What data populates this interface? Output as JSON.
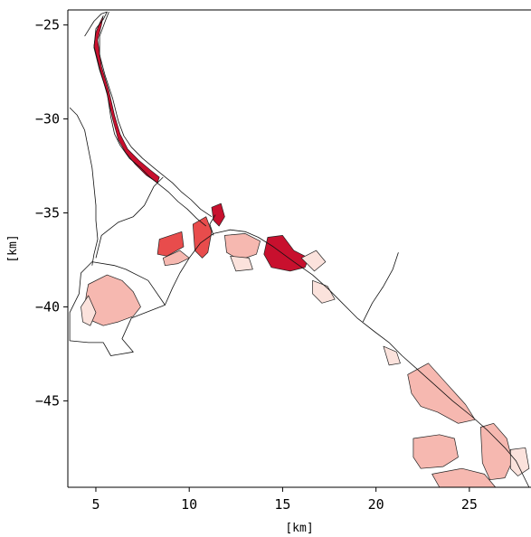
{
  "chart_data": {
    "type": "map-field",
    "title": "",
    "xlabel": "[km]",
    "ylabel": "[km]",
    "xlim": [
      3.5,
      28.3
    ],
    "ylim": [
      -49.6,
      -24.2
    ],
    "xticks": [
      5,
      10,
      15,
      20,
      25
    ],
    "yticks": [
      -25,
      -30,
      -35,
      -40,
      -45
    ],
    "grid": false,
    "colors": {
      "dark": "#c8102e",
      "mid": "#e84c4c",
      "light": "#f6b8b0",
      "faint": "#fbe2dc",
      "outline": "#111111"
    },
    "river_bank_left": [
      [
        4.4,
        -25.6
      ],
      [
        4.9,
        -24.8
      ],
      [
        5.3,
        -24.4
      ],
      [
        5.6,
        -24.3
      ],
      [
        5.4,
        -24.7
      ],
      [
        5.0,
        -25.2
      ],
      [
        4.9,
        -26.2
      ],
      [
        5.2,
        -27.4
      ],
      [
        5.6,
        -28.6
      ],
      [
        5.8,
        -29.9
      ],
      [
        6.0,
        -30.8
      ],
      [
        6.3,
        -31.4
      ],
      [
        6.8,
        -32.1
      ],
      [
        7.4,
        -32.6
      ],
      [
        7.9,
        -33.1
      ],
      [
        8.4,
        -33.5
      ],
      [
        8.9,
        -33.9
      ],
      [
        9.4,
        -34.4
      ],
      [
        9.9,
        -34.8
      ],
      [
        10.4,
        -35.3
      ],
      [
        10.9,
        -35.7
      ]
    ],
    "river_bank_right": [
      [
        5.7,
        -24.3
      ],
      [
        5.5,
        -24.8
      ],
      [
        5.2,
        -25.6
      ],
      [
        5.2,
        -26.6
      ],
      [
        5.5,
        -27.7
      ],
      [
        5.9,
        -28.9
      ],
      [
        6.2,
        -30.1
      ],
      [
        6.5,
        -30.9
      ],
      [
        6.9,
        -31.5
      ],
      [
        7.5,
        -32.1
      ],
      [
        8.1,
        -32.6
      ],
      [
        8.6,
        -33.0
      ],
      [
        9.1,
        -33.4
      ],
      [
        9.6,
        -33.9
      ],
      [
        10.1,
        -34.3
      ],
      [
        10.6,
        -34.8
      ],
      [
        11.2,
        -35.2
      ]
    ],
    "river_fill": [
      [
        5.0,
        -25.4
      ],
      [
        5.2,
        -24.9
      ],
      [
        5.4,
        -24.5
      ],
      [
        5.3,
        -25.0
      ],
      [
        5.1,
        -25.8
      ],
      [
        5.3,
        -27.2
      ],
      [
        5.7,
        -28.5
      ],
      [
        6.0,
        -29.8
      ],
      [
        6.3,
        -30.8
      ],
      [
        6.7,
        -31.6
      ],
      [
        7.3,
        -32.2
      ],
      [
        7.9,
        -32.7
      ],
      [
        8.4,
        -33.1
      ],
      [
        8.3,
        -33.4
      ],
      [
        7.7,
        -33.0
      ],
      [
        7.1,
        -32.4
      ],
      [
        6.6,
        -31.8
      ],
      [
        6.2,
        -31.1
      ],
      [
        5.9,
        -30.0
      ],
      [
        5.6,
        -28.7
      ],
      [
        5.2,
        -27.3
      ],
      [
        4.9,
        -26.1
      ]
    ],
    "channel_north": [
      [
        3.6,
        -29.4
      ],
      [
        4.0,
        -29.8
      ],
      [
        4.4,
        -30.6
      ],
      [
        4.6,
        -31.6
      ],
      [
        4.8,
        -32.6
      ],
      [
        4.9,
        -33.6
      ],
      [
        5.0,
        -34.6
      ],
      [
        5.0,
        -35.4
      ],
      [
        5.1,
        -36.4
      ],
      [
        4.9,
        -37.2
      ],
      [
        4.8,
        -37.8
      ]
    ],
    "channel_mid": [
      [
        5.0,
        -37.4
      ],
      [
        5.3,
        -36.2
      ],
      [
        6.2,
        -35.5
      ],
      [
        7.0,
        -35.2
      ],
      [
        7.6,
        -34.6
      ],
      [
        8.1,
        -33.6
      ],
      [
        8.6,
        -33.1
      ]
    ],
    "harbor_outline": [
      [
        4.2,
        -38.2
      ],
      [
        4.8,
        -37.6
      ],
      [
        6.0,
        -37.8
      ],
      [
        6.6,
        -38.0
      ],
      [
        7.8,
        -38.6
      ],
      [
        8.7,
        -39.9
      ],
      [
        6.9,
        -40.6
      ],
      [
        6.4,
        -41.7
      ],
      [
        7.0,
        -42.4
      ],
      [
        5.8,
        -42.6
      ],
      [
        5.4,
        -41.9
      ],
      [
        4.6,
        -41.9
      ],
      [
        3.6,
        -41.8
      ],
      [
        3.6,
        -40.3
      ],
      [
        4.1,
        -39.3
      ]
    ],
    "coast_main": [
      [
        8.7,
        -39.9
      ],
      [
        9.1,
        -39.0
      ],
      [
        9.5,
        -38.2
      ],
      [
        10.0,
        -37.4
      ],
      [
        10.6,
        -36.6
      ],
      [
        11.3,
        -36.1
      ],
      [
        12.2,
        -35.9
      ],
      [
        13.0,
        -36.0
      ],
      [
        13.7,
        -36.3
      ],
      [
        14.5,
        -36.8
      ],
      [
        15.6,
        -37.6
      ],
      [
        16.6,
        -38.3
      ],
      [
        17.5,
        -39.1
      ],
      [
        18.2,
        -39.8
      ],
      [
        19.0,
        -40.6
      ],
      [
        19.9,
        -41.3
      ],
      [
        20.7,
        -41.9
      ],
      [
        21.4,
        -42.6
      ],
      [
        22.3,
        -43.4
      ],
      [
        23.2,
        -44.2
      ],
      [
        24.1,
        -45.0
      ],
      [
        25.1,
        -45.8
      ],
      [
        26.0,
        -46.6
      ],
      [
        26.9,
        -47.5
      ],
      [
        27.5,
        -48.2
      ],
      [
        27.9,
        -49.0
      ],
      [
        28.2,
        -49.6
      ]
    ],
    "pier_east": [
      [
        19.3,
        -40.8
      ],
      [
        19.8,
        -39.8
      ],
      [
        20.4,
        -38.9
      ],
      [
        20.9,
        -38.0
      ],
      [
        21.2,
        -37.1
      ]
    ],
    "pier_small": [
      [
        11.4,
        -35.1
      ],
      [
        11.1,
        -35.6
      ],
      [
        11.3,
        -36.2
      ]
    ],
    "regions": [
      {
        "level": "light",
        "points": [
          [
            4.6,
            -38.8
          ],
          [
            5.6,
            -38.3
          ],
          [
            6.4,
            -38.6
          ],
          [
            7.0,
            -39.2
          ],
          [
            7.4,
            -40.0
          ],
          [
            7.0,
            -40.5
          ],
          [
            6.2,
            -40.8
          ],
          [
            5.4,
            -41.0
          ],
          [
            4.7,
            -40.7
          ],
          [
            4.4,
            -40.0
          ],
          [
            4.5,
            -39.3
          ]
        ]
      },
      {
        "level": "faint",
        "points": [
          [
            4.2,
            -40.0
          ],
          [
            4.6,
            -39.4
          ],
          [
            5.0,
            -40.3
          ],
          [
            4.7,
            -41.0
          ],
          [
            4.3,
            -40.8
          ]
        ]
      },
      {
        "level": "mid",
        "points": [
          [
            8.4,
            -36.4
          ],
          [
            9.6,
            -36.0
          ],
          [
            9.7,
            -36.8
          ],
          [
            8.8,
            -37.3
          ],
          [
            8.3,
            -37.2
          ]
        ]
      },
      {
        "level": "light",
        "points": [
          [
            8.6,
            -37.4
          ],
          [
            9.5,
            -37.0
          ],
          [
            10.0,
            -37.4
          ],
          [
            9.4,
            -37.7
          ],
          [
            8.7,
            -37.8
          ]
        ]
      },
      {
        "level": "mid",
        "points": [
          [
            10.2,
            -35.6
          ],
          [
            10.9,
            -35.2
          ],
          [
            11.2,
            -36.0
          ],
          [
            11.0,
            -37.1
          ],
          [
            10.7,
            -37.4
          ],
          [
            10.3,
            -37.0
          ]
        ]
      },
      {
        "level": "dark",
        "points": [
          [
            11.2,
            -34.7
          ],
          [
            11.7,
            -34.5
          ],
          [
            11.9,
            -35.2
          ],
          [
            11.6,
            -35.7
          ],
          [
            11.3,
            -35.4
          ]
        ]
      },
      {
        "level": "light",
        "points": [
          [
            11.9,
            -36.2
          ],
          [
            13.0,
            -36.1
          ],
          [
            13.8,
            -36.5
          ],
          [
            13.6,
            -37.2
          ],
          [
            12.7,
            -37.5
          ],
          [
            12.0,
            -37.1
          ]
        ]
      },
      {
        "level": "faint",
        "points": [
          [
            12.2,
            -37.3
          ],
          [
            13.2,
            -37.4
          ],
          [
            13.4,
            -38.0
          ],
          [
            12.5,
            -38.1
          ]
        ]
      },
      {
        "level": "dark",
        "points": [
          [
            14.2,
            -36.3
          ],
          [
            15.0,
            -36.2
          ],
          [
            15.6,
            -37.0
          ],
          [
            16.4,
            -37.4
          ],
          [
            16.2,
            -37.9
          ],
          [
            15.4,
            -38.1
          ],
          [
            14.4,
            -37.9
          ],
          [
            14.0,
            -37.2
          ]
        ]
      },
      {
        "level": "faint",
        "points": [
          [
            16.0,
            -37.4
          ],
          [
            16.8,
            -37.0
          ],
          [
            17.3,
            -37.6
          ],
          [
            16.7,
            -38.1
          ]
        ]
      },
      {
        "level": "faint",
        "points": [
          [
            16.6,
            -38.6
          ],
          [
            17.4,
            -38.9
          ],
          [
            17.8,
            -39.6
          ],
          [
            17.1,
            -39.8
          ],
          [
            16.6,
            -39.3
          ]
        ]
      },
      {
        "level": "light",
        "points": [
          [
            21.7,
            -43.6
          ],
          [
            22.8,
            -43.0
          ],
          [
            23.8,
            -44.1
          ],
          [
            24.8,
            -45.2
          ],
          [
            25.3,
            -46.0
          ],
          [
            24.4,
            -46.2
          ],
          [
            23.3,
            -45.6
          ],
          [
            22.4,
            -45.3
          ],
          [
            21.9,
            -44.6
          ]
        ]
      },
      {
        "level": "faint",
        "points": [
          [
            20.4,
            -42.1
          ],
          [
            21.1,
            -42.4
          ],
          [
            21.3,
            -43.0
          ],
          [
            20.7,
            -43.1
          ]
        ]
      },
      {
        "level": "light",
        "points": [
          [
            25.6,
            -46.4
          ],
          [
            26.3,
            -46.2
          ],
          [
            27.0,
            -47.0
          ],
          [
            27.3,
            -48.2
          ],
          [
            26.9,
            -49.1
          ],
          [
            26.1,
            -49.2
          ],
          [
            25.7,
            -48.3
          ]
        ]
      },
      {
        "level": "light",
        "points": [
          [
            22.0,
            -47.0
          ],
          [
            23.4,
            -46.8
          ],
          [
            24.2,
            -47.0
          ],
          [
            24.4,
            -48.0
          ],
          [
            23.6,
            -48.5
          ],
          [
            22.4,
            -48.6
          ],
          [
            22.0,
            -48.0
          ]
        ]
      },
      {
        "level": "light",
        "points": [
          [
            23.0,
            -48.9
          ],
          [
            24.6,
            -48.6
          ],
          [
            25.8,
            -48.9
          ],
          [
            26.4,
            -49.6
          ],
          [
            23.4,
            -49.6
          ]
        ]
      },
      {
        "level": "faint",
        "points": [
          [
            27.2,
            -47.6
          ],
          [
            28.0,
            -47.5
          ],
          [
            28.2,
            -48.6
          ],
          [
            27.6,
            -49.0
          ],
          [
            27.2,
            -48.6
          ]
        ]
      }
    ]
  }
}
